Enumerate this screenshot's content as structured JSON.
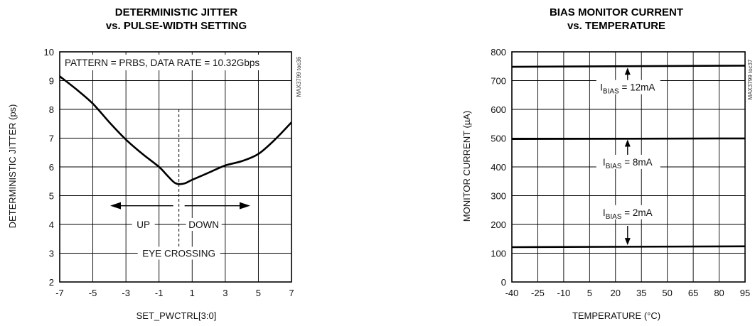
{
  "chart_data": [
    {
      "type": "line",
      "title_line1": "DETERMINISTIC JITTER",
      "title_line2": "vs. PULSE-WIDTH SETTING",
      "xlabel": "SET_PWCTRL[3:0]",
      "ylabel": "DETERMINISTIC JITTER (ps)",
      "xlim": [
        -7,
        7
      ],
      "ylim": [
        2,
        10
      ],
      "xticks": [
        "-7",
        "-5",
        "-3",
        "-1",
        "1",
        "3",
        "5",
        "7"
      ],
      "yticks": [
        "2",
        "3",
        "4",
        "5",
        "6",
        "7",
        "8",
        "9",
        "10"
      ],
      "grid": true,
      "watermark": "MAX3799 toc36",
      "annotations": {
        "pattern": "PATTERN = PRBS, DATA RATE = 10.32Gbps",
        "up": "UP",
        "down": "DOWN",
        "eye_crossing": "EYE CROSSING"
      },
      "eye_crossing_x": 0.2,
      "series": [
        {
          "x": [
            -7,
            -6,
            -5,
            -4,
            -3,
            -2,
            -1,
            -0.5,
            0,
            0.5,
            1,
            2,
            3,
            4,
            5,
            6,
            7
          ],
          "values": [
            9.15,
            8.7,
            8.2,
            7.55,
            6.95,
            6.45,
            6.0,
            5.7,
            5.43,
            5.42,
            5.55,
            5.8,
            6.05,
            6.2,
            6.45,
            6.95,
            7.55
          ]
        }
      ]
    },
    {
      "type": "line",
      "title_line1": "BIAS MONITOR CURRENT",
      "title_line2": "vs. TEMPERATURE",
      "xlabel": "TEMPERATURE (°C)",
      "ylabel": "MONITOR CURRENT (µA)",
      "xlim": [
        -40,
        95
      ],
      "ylim": [
        0,
        800
      ],
      "xticks": [
        "-40",
        "-25",
        "-10",
        "5",
        "20",
        "35",
        "50",
        "65",
        "80",
        "95"
      ],
      "yticks": [
        "0",
        "100",
        "200",
        "300",
        "400",
        "500",
        "600",
        "700",
        "800"
      ],
      "grid": true,
      "watermark": "MAX3799 toc37",
      "series": [
        {
          "name": "IBIAS = 12mA",
          "label_main": "I",
          "label_sub": "BIAS",
          "label_rest": " = 12mA",
          "x": [
            -40,
            95
          ],
          "values": [
            748,
            752
          ]
        },
        {
          "name": "IBIAS = 8mA",
          "label_main": "I",
          "label_sub": "BIAS",
          "label_rest": " = 8mA",
          "x": [
            -40,
            95
          ],
          "values": [
            497,
            499
          ]
        },
        {
          "name": "IBIAS = 2mA",
          "label_main": "I",
          "label_sub": "BIAS",
          "label_rest": " = 2mA",
          "x": [
            -40,
            95
          ],
          "values": [
            121,
            124
          ]
        }
      ]
    }
  ]
}
